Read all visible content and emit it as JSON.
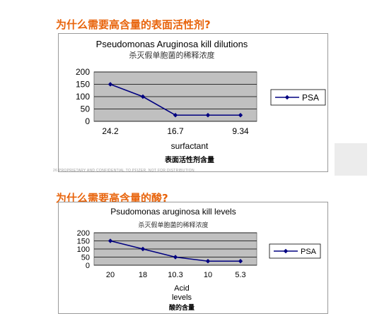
{
  "slide1": {
    "heading": "为什么需要高含量的表面活性剂?",
    "footer": "26   PROPRIETARY AND CONFIDENTIAL  TO PFIZER. NOT FOR DISTRIBUTION"
  },
  "slide2": {
    "heading": "为什么需要高含量的酸?"
  },
  "colors": {
    "heading": "#e8640c",
    "plot_bg": "#c0c0c0",
    "series": "#000080"
  },
  "chart_data": [
    {
      "type": "line",
      "title": "Pseudomonas Aruginosa kill dilutions",
      "subtitle": "杀灭假单胞菌的稀释浓度",
      "xlabel": "surfactant",
      "xlabel_cn": "表面活性剂含量",
      "ylabel": "",
      "x_categories": [
        "24.2",
        "",
        "16.7",
        "",
        "9.34"
      ],
      "y_ticks": [
        0,
        50,
        100,
        150,
        200
      ],
      "ylim": [
        0,
        200
      ],
      "grid": true,
      "legend": "right",
      "series": [
        {
          "name": "PSA",
          "values": [
            150,
            100,
            25,
            25,
            25
          ]
        }
      ]
    },
    {
      "type": "line",
      "title": "Psudomonas aruginosa kill levels",
      "subtitle": "杀灭假单胞菌的稀释浓度",
      "xlabel_line1": "Acid",
      "xlabel_line2": "levels",
      "xlabel_cn": "酸的含量",
      "ylabel": "",
      "x_categories": [
        "20",
        "18",
        "10.3",
        "10",
        "5.3"
      ],
      "y_ticks": [
        0,
        50,
        100,
        150,
        200
      ],
      "ylim": [
        0,
        200
      ],
      "grid": true,
      "legend": "right",
      "series": [
        {
          "name": "PSA",
          "values": [
            150,
            100,
            50,
            25,
            25
          ]
        }
      ]
    }
  ]
}
